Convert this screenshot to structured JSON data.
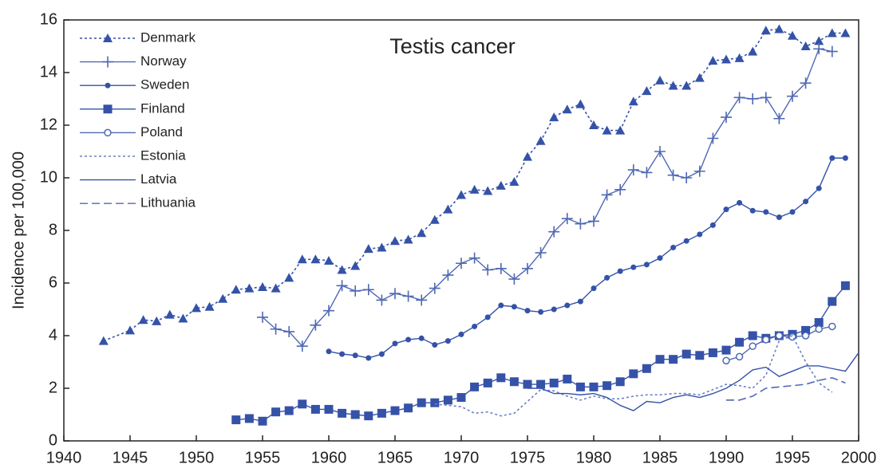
{
  "chart_data": {
    "type": "line",
    "title": "Testis cancer",
    "ylabel": "Incidence per 100,000",
    "xlim": [
      1940,
      2000
    ],
    "xticks": [
      1940,
      1945,
      1950,
      1955,
      1960,
      1965,
      1970,
      1975,
      1980,
      1985,
      1990,
      1995,
      2000
    ],
    "ylim": [
      0,
      16
    ],
    "yticks": [
      0,
      2,
      4,
      6,
      8,
      10,
      12,
      14,
      16
    ],
    "grid": false,
    "legend": "upper left",
    "series": [
      {
        "name": "Denmark",
        "color": "#3552a8",
        "marker": "triangle",
        "dash": "dotted",
        "x": [
          1943,
          1945,
          1946,
          1947,
          1948,
          1949,
          1950,
          1951,
          1952,
          1953,
          1954,
          1955,
          1956,
          1957,
          1958,
          1959,
          1960,
          1961,
          1962,
          1963,
          1964,
          1965,
          1966,
          1967,
          1968,
          1969,
          1970,
          1971,
          1972,
          1973,
          1974,
          1975,
          1976,
          1977,
          1978,
          1979,
          1980,
          1981,
          1982,
          1983,
          1984,
          1985,
          1986,
          1987,
          1988,
          1989,
          1990,
          1991,
          1992,
          1993,
          1994,
          1995,
          1996,
          1997,
          1998,
          1999
        ],
        "values": [
          3.8,
          4.2,
          4.6,
          4.55,
          4.8,
          4.65,
          5.05,
          5.1,
          5.4,
          5.75,
          5.8,
          5.85,
          5.8,
          6.2,
          6.9,
          6.9,
          6.85,
          6.5,
          6.65,
          7.3,
          7.35,
          7.6,
          7.65,
          7.9,
          8.4,
          8.8,
          9.35,
          9.55,
          9.5,
          9.7,
          9.85,
          10.8,
          11.4,
          12.3,
          12.6,
          12.8,
          12.0,
          11.8,
          11.8,
          12.9,
          13.3,
          13.7,
          13.5,
          13.5,
          13.8,
          14.45,
          14.5,
          14.55,
          14.8,
          15.6,
          15.65,
          15.4,
          15.0,
          15.2,
          15.5,
          15.5
        ]
      },
      {
        "name": "Norway",
        "color": "#5068b4",
        "marker": "plus",
        "dash": "solid",
        "x": [
          1955,
          1956,
          1957,
          1958,
          1959,
          1960,
          1961,
          1962,
          1963,
          1964,
          1965,
          1966,
          1967,
          1968,
          1969,
          1970,
          1971,
          1972,
          1973,
          1974,
          1975,
          1976,
          1977,
          1978,
          1979,
          1980,
          1981,
          1982,
          1983,
          1984,
          1985,
          1986,
          1987,
          1988,
          1989,
          1990,
          1991,
          1992,
          1993,
          1994,
          1995,
          1996,
          1997,
          1998
        ],
        "values": [
          4.7,
          4.25,
          4.15,
          3.6,
          4.4,
          4.95,
          5.9,
          5.7,
          5.75,
          5.35,
          5.6,
          5.5,
          5.35,
          5.8,
          6.3,
          6.75,
          6.95,
          6.5,
          6.55,
          6.15,
          6.55,
          7.15,
          7.95,
          8.45,
          8.25,
          8.35,
          9.35,
          9.55,
          10.3,
          10.2,
          11.0,
          10.1,
          10.0,
          10.25,
          11.5,
          12.3,
          13.05,
          13.0,
          13.05,
          12.25,
          13.1,
          13.6,
          14.9,
          14.8
        ]
      },
      {
        "name": "Sweden",
        "color": "#3552a8",
        "marker": "dot",
        "dash": "solid",
        "x": [
          1960,
          1961,
          1962,
          1963,
          1964,
          1965,
          1966,
          1967,
          1968,
          1969,
          1970,
          1971,
          1972,
          1973,
          1974,
          1975,
          1976,
          1977,
          1978,
          1979,
          1980,
          1981,
          1982,
          1983,
          1984,
          1985,
          1986,
          1987,
          1988,
          1989,
          1990,
          1991,
          1992,
          1993,
          1994,
          1995,
          1996,
          1997,
          1998,
          1999
        ],
        "values": [
          3.4,
          3.3,
          3.25,
          3.15,
          3.3,
          3.7,
          3.85,
          3.9,
          3.65,
          3.8,
          4.05,
          4.35,
          4.7,
          5.15,
          5.1,
          4.95,
          4.9,
          5.0,
          5.15,
          5.3,
          5.8,
          6.2,
          6.45,
          6.6,
          6.7,
          6.95,
          7.35,
          7.6,
          7.85,
          8.2,
          8.8,
          9.05,
          8.75,
          8.7,
          8.5,
          8.7,
          9.1,
          9.6,
          10.75,
          10.75
        ]
      },
      {
        "name": "Finland",
        "color": "#3552a8",
        "marker": "square",
        "dash": "solid",
        "x": [
          1953,
          1954,
          1955,
          1956,
          1957,
          1958,
          1959,
          1960,
          1961,
          1962,
          1963,
          1964,
          1965,
          1966,
          1967,
          1968,
          1969,
          1970,
          1971,
          1972,
          1973,
          1974,
          1975,
          1976,
          1977,
          1978,
          1979,
          1980,
          1981,
          1982,
          1983,
          1984,
          1985,
          1986,
          1987,
          1988,
          1989,
          1990,
          1991,
          1992,
          1993,
          1994,
          1995,
          1996,
          1997,
          1998,
          1999
        ],
        "values": [
          0.8,
          0.85,
          0.75,
          1.1,
          1.15,
          1.4,
          1.2,
          1.2,
          1.05,
          1.0,
          0.95,
          1.05,
          1.15,
          1.25,
          1.45,
          1.45,
          1.55,
          1.65,
          2.05,
          2.2,
          2.4,
          2.25,
          2.15,
          2.15,
          2.2,
          2.35,
          2.05,
          2.05,
          2.1,
          2.25,
          2.55,
          2.75,
          3.1,
          3.1,
          3.3,
          3.25,
          3.35,
          3.45,
          3.75,
          4.0,
          3.9,
          4.0,
          4.05,
          4.2,
          4.5,
          5.3,
          5.9
        ]
      },
      {
        "name": "Poland",
        "color": "#5068b4",
        "marker": "circle",
        "dash": "solid",
        "x": [
          1990,
          1991,
          1992,
          1993,
          1994,
          1995,
          1996,
          1997,
          1998
        ],
        "values": [
          3.05,
          3.2,
          3.6,
          3.85,
          4.0,
          3.95,
          4.0,
          4.25,
          4.35
        ]
      },
      {
        "name": "Estonia",
        "color": "#6a80c4",
        "marker": "none",
        "dash": "dotted",
        "x": [
          1968,
          1969,
          1970,
          1971,
          1972,
          1973,
          1974,
          1975,
          1976,
          1977,
          1978,
          1979,
          1980,
          1981,
          1982,
          1983,
          1984,
          1985,
          1986,
          1987,
          1988,
          1989,
          1990,
          1991,
          1992,
          1993,
          1994,
          1995,
          1996,
          1997,
          1998
        ],
        "values": [
          1.4,
          1.35,
          1.3,
          1.05,
          1.1,
          0.95,
          1.05,
          1.5,
          1.95,
          1.9,
          1.7,
          1.55,
          1.7,
          1.6,
          1.6,
          1.7,
          1.75,
          1.75,
          1.8,
          1.8,
          1.75,
          1.95,
          2.15,
          2.1,
          2.0,
          2.5,
          3.8,
          4.0,
          3.0,
          2.2,
          1.85
        ]
      },
      {
        "name": "Latvia",
        "color": "#3552a8",
        "marker": "none",
        "dash": "solid",
        "x": [
          1975,
          1976,
          1977,
          1978,
          1979,
          1980,
          1981,
          1982,
          1983,
          1984,
          1985,
          1986,
          1987,
          1988,
          1989,
          1990,
          1991,
          1992,
          1993,
          1994,
          1995,
          1996,
          1997,
          1998,
          1999,
          2000
        ],
        "values": [
          2.0,
          2.0,
          1.8,
          1.8,
          1.75,
          1.8,
          1.65,
          1.35,
          1.15,
          1.5,
          1.45,
          1.65,
          1.75,
          1.65,
          1.8,
          2.0,
          2.3,
          2.7,
          2.8,
          2.45,
          2.65,
          2.85,
          2.85,
          2.75,
          2.65,
          3.35
        ]
      },
      {
        "name": "Lithuania",
        "color": "#5068b4",
        "marker": "none",
        "dash": "dashed",
        "x": [
          1990,
          1991,
          1992,
          1993,
          1994,
          1995,
          1996,
          1997,
          1998,
          1999
        ],
        "values": [
          1.55,
          1.55,
          1.7,
          2.0,
          2.05,
          2.1,
          2.15,
          2.3,
          2.4,
          2.2
        ]
      }
    ]
  }
}
